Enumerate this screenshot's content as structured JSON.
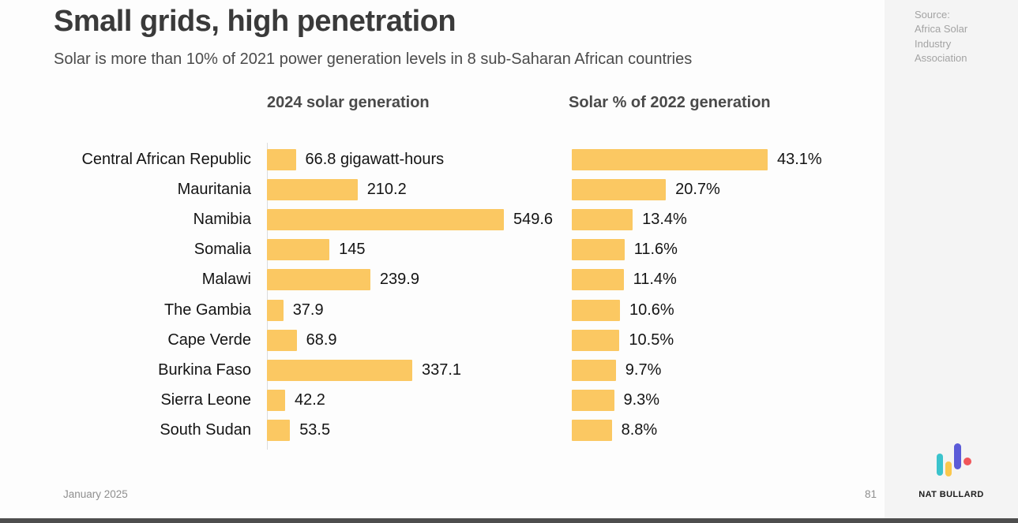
{
  "page": {
    "title": "Small grids, high penetration",
    "subtitle": "Solar is more than 10% of 2021 power generation levels in 8 sub-Saharan African countries",
    "source": {
      "label": "Source:",
      "line1": "Africa Solar",
      "line2": "Industry",
      "line3": "Association"
    },
    "footer": {
      "date": "January 2025",
      "page_number": "81",
      "logo_text": "NAT BULLARD"
    }
  },
  "chart_data": {
    "type": "bar",
    "orientation": "horizontal",
    "grid": false,
    "legend_position": "none",
    "bar_color": "#FBC862",
    "categories": [
      "Central African Republic",
      "Mauritania",
      "Namibia",
      "Somalia",
      "Malawi",
      "The Gambia",
      "Cape Verde",
      "Burkina Faso",
      "Sierra Leone",
      "South Sudan"
    ],
    "series": [
      {
        "name": "2024 solar generation",
        "unit": "gigawatt-hours",
        "xmax": 549.6,
        "values": [
          66.8,
          210.2,
          549.6,
          145,
          239.9,
          37.9,
          68.9,
          337.1,
          42.2,
          53.5
        ],
        "labels": [
          "66.8 gigawatt-hours",
          "210.2",
          "549.6",
          "145",
          "239.9",
          "37.9",
          "68.9",
          "337.1",
          "42.2",
          "53.5"
        ]
      },
      {
        "name": "Solar % of 2022 generation",
        "unit": "%",
        "xmax": 43.1,
        "values": [
          43.1,
          20.7,
          13.4,
          11.6,
          11.4,
          10.6,
          10.5,
          9.7,
          9.3,
          8.8
        ],
        "labels": [
          "43.1%",
          "20.7%",
          "13.4%",
          "11.6%",
          "11.4%",
          "10.6%",
          "10.5%",
          "9.7%",
          "9.3%",
          "8.8%"
        ]
      }
    ]
  },
  "logo_colors": {
    "teal": "#3BC3CC",
    "yellow": "#FBC84C",
    "indigo": "#5B5BD8",
    "red": "#F0565A"
  }
}
